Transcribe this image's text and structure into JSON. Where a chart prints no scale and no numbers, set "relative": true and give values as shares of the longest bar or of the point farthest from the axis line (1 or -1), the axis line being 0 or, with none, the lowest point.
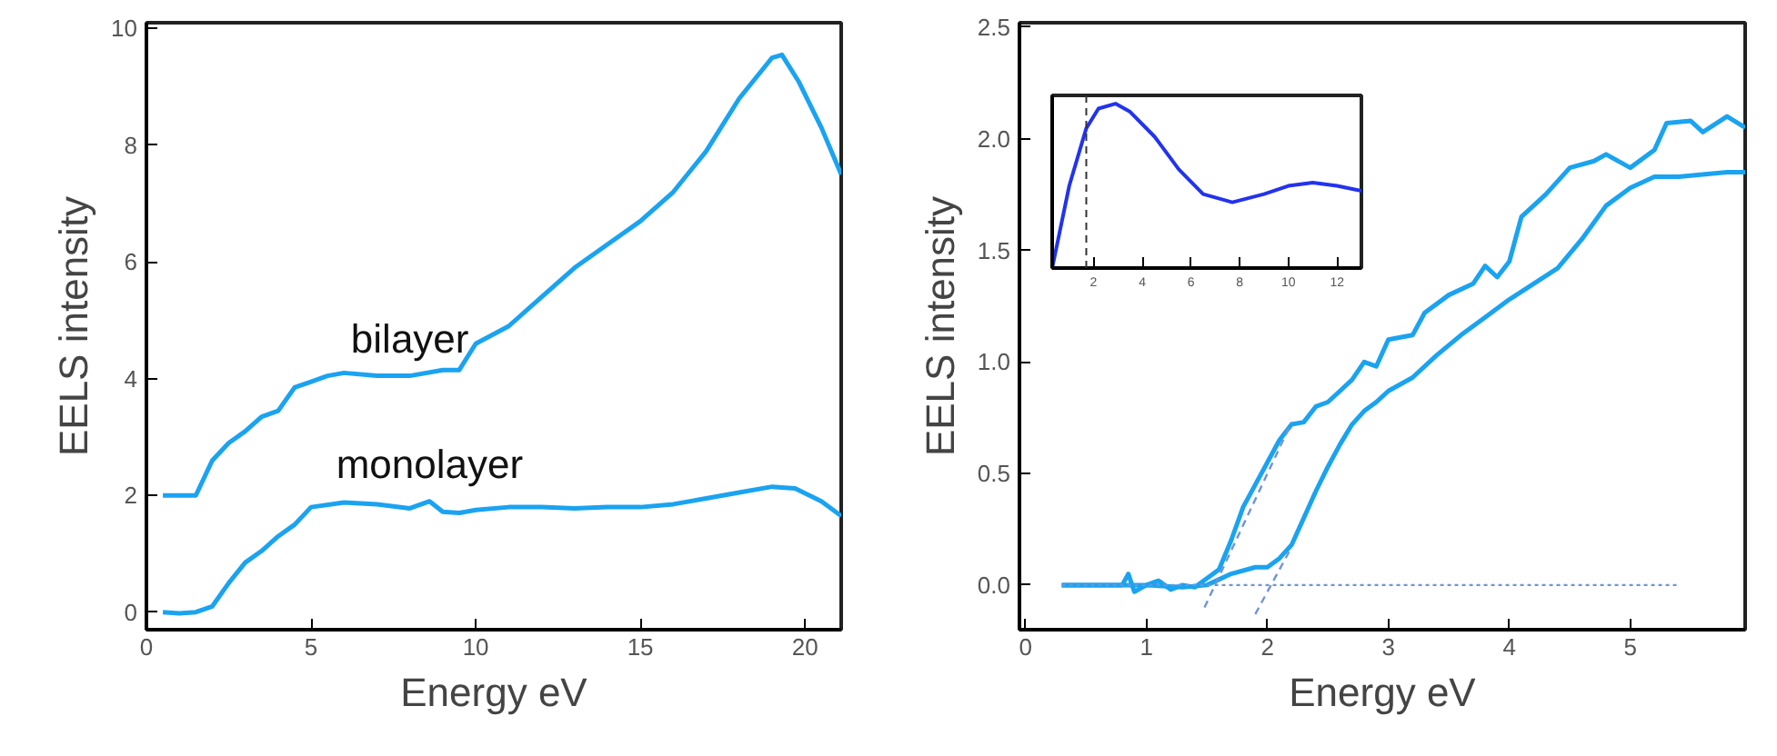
{
  "chart_data": [
    {
      "type": "line",
      "xlabel": "Energy eV",
      "ylabel": "EELS intensity",
      "xlim": [
        0,
        21.1
      ],
      "ylim": [
        -0.3,
        10.1
      ],
      "xticks": [
        0,
        5,
        10,
        15,
        20
      ],
      "yticks": [
        0,
        2,
        4,
        6,
        8,
        10
      ],
      "grid": false,
      "marker": "none",
      "line_style": "solid",
      "annotations": [
        "bilayer",
        "monolayer"
      ],
      "series": [
        {
          "color": "#1aa3f0",
          "x": [
            0.5,
            1,
            1.5,
            2,
            2.5,
            3,
            3.5,
            4,
            4.5,
            5,
            5.5,
            6,
            7,
            8,
            9,
            9.5,
            10,
            11,
            12,
            13,
            14,
            15,
            16,
            17,
            18,
            19,
            19.3,
            19.8,
            20.5,
            21.1
          ],
          "values": [
            2,
            2,
            2.0,
            2.6,
            2.9,
            3.1,
            3.35,
            3.45,
            3.85,
            3.95,
            4.05,
            4.1,
            4.05,
            4.05,
            4.15,
            4.15,
            4.6,
            4.9,
            5.4,
            5.9,
            6.3,
            6.7,
            7.2,
            7.9,
            8.8,
            9.5,
            9.55,
            9.1,
            8.3,
            7.5
          ]
        },
        {
          "color": "#1aa3f0",
          "x": [
            0.5,
            1,
            1.5,
            2,
            2.5,
            3,
            3.5,
            4,
            4.5,
            5,
            6,
            7,
            8,
            8.6,
            9,
            9.5,
            10,
            11,
            12,
            13,
            14,
            15,
            16,
            17,
            18,
            19,
            19.7,
            20.5,
            21.1
          ],
          "values": [
            0,
            -0.02,
            0,
            0.1,
            0.5,
            0.85,
            1.05,
            1.3,
            1.5,
            1.8,
            1.88,
            1.85,
            1.78,
            1.9,
            1.72,
            1.7,
            1.75,
            1.8,
            1.8,
            1.78,
            1.8,
            1.8,
            1.85,
            1.95,
            2.05,
            2.15,
            2.12,
            1.9,
            1.65
          ]
        }
      ]
    },
    {
      "type": "line",
      "xlabel": "Energy eV",
      "ylabel": "EELS intensity",
      "xlim": [
        -0.05,
        5.95
      ],
      "ylim": [
        -0.2,
        2.52
      ],
      "xticks": [
        0,
        1,
        2,
        3,
        4,
        5
      ],
      "yticks": [
        {
          "value": 0,
          "label": "0.0"
        },
        {
          "value": 0.5,
          "label": "0.5"
        },
        {
          "value": 1,
          "label": "1.0"
        },
        {
          "value": 1.5,
          "label": "1.5"
        },
        {
          "value": 2,
          "label": "2.0"
        },
        {
          "value": 2.5,
          "label": "2.5"
        }
      ],
      "grid": false,
      "marker": "none",
      "line_style": "solid",
      "series": [
        {
          "color": "#1aa3f0",
          "x": [
            0.3,
            0.8,
            0.85,
            0.9,
            1.0,
            1.1,
            1.2,
            1.3,
            1.4,
            1.5,
            1.6,
            1.7,
            1.8,
            1.9,
            2.0,
            2.1,
            2.2,
            2.3,
            2.4,
            2.5,
            2.6,
            2.7,
            2.8,
            2.9,
            3.0,
            3.2,
            3.3,
            3.5,
            3.7,
            3.8,
            3.9,
            4.0,
            4.1,
            4.3,
            4.5,
            4.7,
            4.8,
            5.0,
            5.2,
            5.3,
            5.5,
            5.6,
            5.8,
            5.95
          ],
          "values": [
            0,
            0,
            0.05,
            -0.03,
            0,
            0.02,
            -0.02,
            0,
            -0.01,
            0.03,
            0.07,
            0.2,
            0.35,
            0.45,
            0.55,
            0.65,
            0.72,
            0.73,
            0.8,
            0.82,
            0.87,
            0.92,
            1.0,
            0.98,
            1.1,
            1.12,
            1.22,
            1.3,
            1.35,
            1.43,
            1.38,
            1.45,
            1.65,
            1.75,
            1.87,
            1.9,
            1.93,
            1.87,
            1.95,
            2.07,
            2.08,
            2.03,
            2.1,
            2.05
          ]
        },
        {
          "color": "#1aa3f0",
          "x": [
            0.3,
            1.0,
            1.3,
            1.5,
            1.7,
            1.9,
            2.0,
            2.1,
            2.2,
            2.3,
            2.4,
            2.5,
            2.6,
            2.7,
            2.8,
            2.9,
            3.0,
            3.2,
            3.4,
            3.6,
            3.8,
            4.0,
            4.2,
            4.4,
            4.6,
            4.8,
            5.0,
            5.2,
            5.4,
            5.6,
            5.8,
            5.95
          ],
          "values": [
            0,
            0,
            -0.01,
            0,
            0.05,
            0.08,
            0.08,
            0.12,
            0.18,
            0.3,
            0.42,
            0.53,
            0.63,
            0.72,
            0.78,
            0.82,
            0.87,
            0.93,
            1.03,
            1.12,
            1.2,
            1.28,
            1.35,
            1.42,
            1.55,
            1.7,
            1.78,
            1.83,
            1.83,
            1.84,
            1.85,
            1.85
          ]
        },
        {
          "color": "#6f94d8",
          "line_style": "dotted",
          "x": [
            0.3,
            5.4
          ],
          "values": [
            0,
            0
          ]
        },
        {
          "color": "#6f94d8",
          "line_style": "dashed",
          "x": [
            1.48,
            2.2
          ],
          "values": [
            -0.1,
            0.73
          ]
        },
        {
          "color": "#6f94d8",
          "line_style": "dashed",
          "x": [
            1.9,
            2.2
          ],
          "values": [
            -0.13,
            0.17
          ]
        }
      ]
    },
    {
      "type": "line",
      "relative": true,
      "xlim": [
        0.3,
        13
      ],
      "xticks": [
        2,
        4,
        6,
        8,
        10,
        12
      ],
      "grid": false,
      "marker": "none",
      "line_style": "solid",
      "ref_lines": [
        {
          "axis": "x",
          "value": 1.7,
          "color": "#333333",
          "line_style": "dashed"
        }
      ],
      "series": [
        {
          "color": "#2233ee",
          "x": [
            0.3,
            1,
            1.7,
            2.2,
            2.9,
            3.5,
            4.5,
            5.5,
            6.5,
            7.7,
            9,
            10,
            11,
            12,
            13
          ],
          "values": [
            0,
            0.5,
            0.85,
            0.97,
            1.0,
            0.95,
            0.8,
            0.6,
            0.45,
            0.4,
            0.45,
            0.5,
            0.52,
            0.5,
            0.47
          ]
        }
      ]
    }
  ]
}
